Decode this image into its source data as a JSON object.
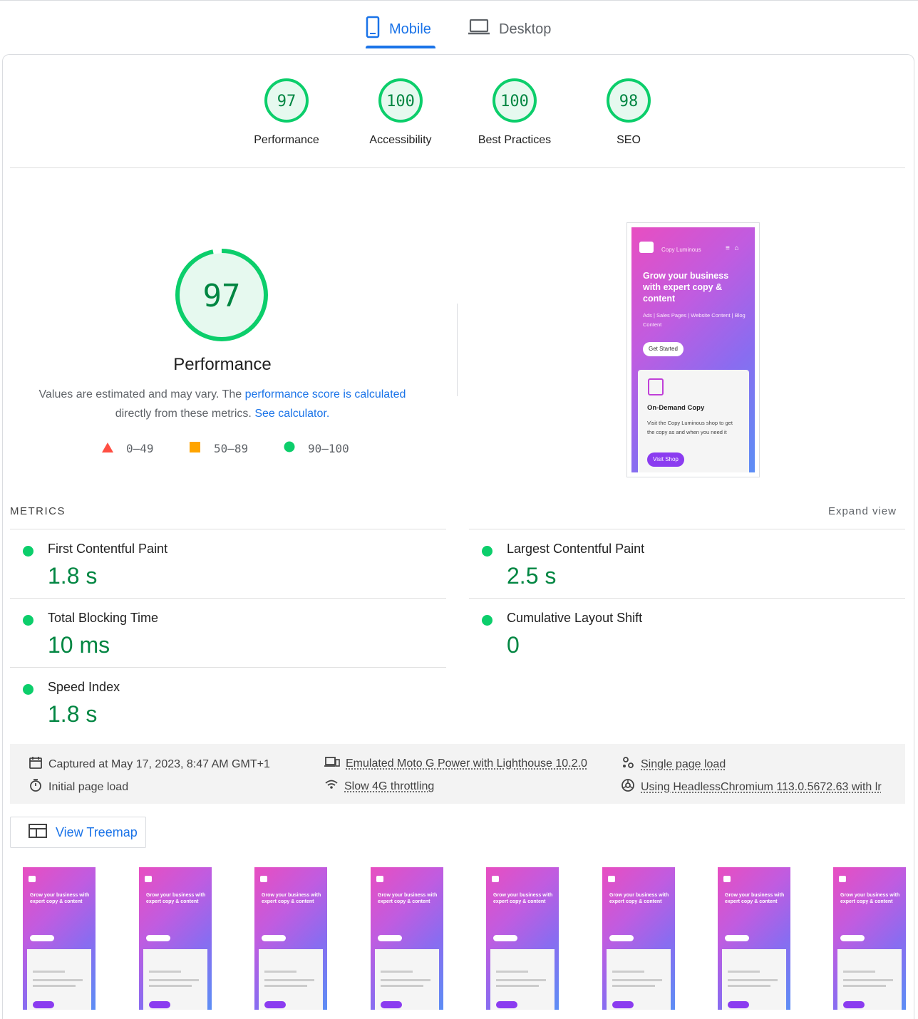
{
  "tabs": {
    "mobile": "Mobile",
    "desktop": "Desktop"
  },
  "scores": [
    {
      "value": "97",
      "label": "Performance"
    },
    {
      "value": "100",
      "label": "Accessibility"
    },
    {
      "value": "100",
      "label": "Best Practices"
    },
    {
      "value": "98",
      "label": "SEO"
    }
  ],
  "performance": {
    "score": "97",
    "title": "Performance",
    "desc_text": "Values are estimated and may vary. The ",
    "desc_link": "performance score is calculated",
    "desc_text2": "directly from these metrics. ",
    "desc_link2": "See calculator."
  },
  "legend": [
    {
      "range": "0–49",
      "color": "#ff4e42"
    },
    {
      "range": "50–89",
      "color": "#ffa400"
    },
    {
      "range": "90–100",
      "color": "#0cce6b"
    }
  ],
  "screenshot": {
    "brand": "Copy Luminous",
    "hero": "Grow your business with expert copy & content",
    "tags": "Ads | Sales Pages | Website Content | Blog Content",
    "cta": "Get Started",
    "card_title": "On-Demand Copy",
    "card_text": "Visit the Copy Luminous shop to get the copy as and when you need it",
    "card_btn": "Visit Shop"
  },
  "metrics": {
    "header": "METRICS",
    "expand": "Expand view",
    "items": [
      {
        "title": "First Contentful Paint",
        "value": "1.8 s"
      },
      {
        "title": "Largest Contentful Paint",
        "value": "2.5 s"
      },
      {
        "title": "Total Blocking Time",
        "value": "10 ms"
      },
      {
        "title": "Cumulative Layout Shift",
        "value": "0"
      },
      {
        "title": "Speed Index",
        "value": "1.8 s"
      }
    ]
  },
  "info": {
    "captured": "Captured at May 17, 2023, 8:47 AM GMT+1",
    "initial": "Initial page load",
    "device": "Emulated Moto G Power with Lighthouse 10.2.0",
    "throttling": "Slow 4G throttling",
    "single": "Single page load",
    "browser": "Using HeadlessChromium 113.0.5672.63 with lr"
  },
  "treemap": "View Treemap",
  "colors": {
    "pass": "#0cce6b",
    "pass_text": "#018642",
    "accent": "#1a73e8"
  }
}
